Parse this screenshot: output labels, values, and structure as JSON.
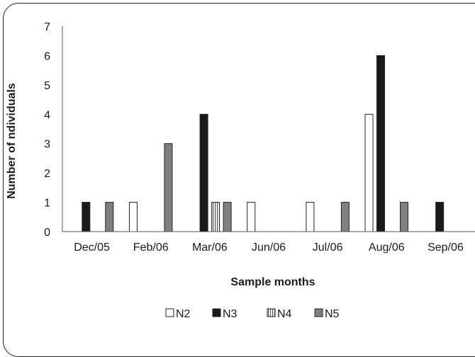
{
  "chart_data": {
    "type": "bar",
    "title": "",
    "xlabel": "Sample months",
    "ylabel": "Number of ndividuals",
    "ylim": [
      0,
      7
    ],
    "yticks": [
      "0",
      "1",
      "2",
      "3",
      "4",
      "5",
      "6",
      "7"
    ],
    "grid": false,
    "legend_position": "bottom",
    "categories": [
      "Dec/05",
      "Feb/06",
      "Mar/06",
      "Jun/06",
      "Jul/06",
      "Aug/06",
      "Sep/06"
    ],
    "series": [
      {
        "name": "N2",
        "color": "#ffffff",
        "pattern": "none",
        "values": [
          0,
          1,
          0,
          1,
          1,
          4,
          0
        ]
      },
      {
        "name": "N3",
        "color": "#1a1a1a",
        "pattern": "none",
        "values": [
          1,
          0,
          4,
          0,
          0,
          6,
          1
        ]
      },
      {
        "name": "N4",
        "color": "#ffffff",
        "pattern": "vertical-lines",
        "values": [
          0,
          0,
          1,
          0,
          0,
          0,
          0
        ]
      },
      {
        "name": "N5",
        "color": "#808080",
        "pattern": "none",
        "values": [
          1,
          3,
          1,
          0,
          1,
          1,
          0
        ]
      }
    ]
  }
}
